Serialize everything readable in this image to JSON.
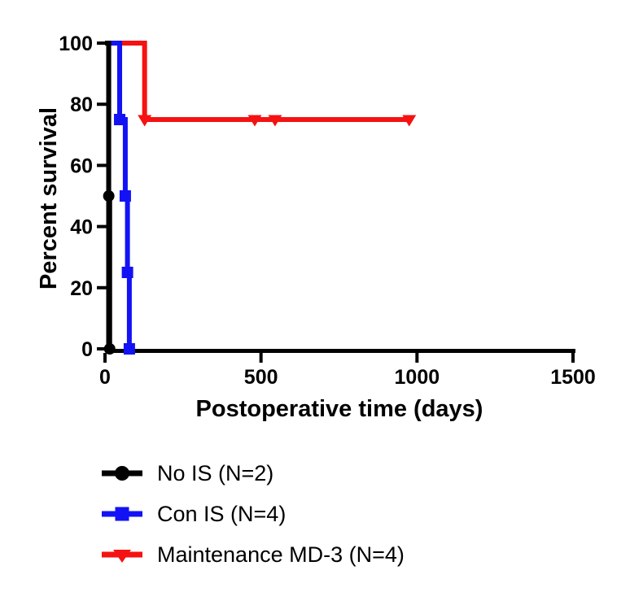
{
  "chart_data": {
    "type": "line",
    "subtype": "kaplan-meier-step-survival",
    "xlabel": "Postoperative time (days)",
    "ylabel": "Percent survival",
    "xlim": [
      0,
      1500
    ],
    "ylim": [
      0,
      100
    ],
    "xticks": [
      0,
      500,
      1000,
      1500
    ],
    "yticks": [
      0,
      20,
      40,
      60,
      80,
      100
    ],
    "grid": false,
    "legend_position": "below-left",
    "axis_color": "#000000",
    "background_color": "#ffffff",
    "series": [
      {
        "name": "No IS (N=2)",
        "color": "#000000",
        "marker": "circle",
        "steps": [
          [
            0,
            100
          ],
          [
            12,
            100
          ],
          [
            12,
            50
          ],
          [
            15,
            50
          ],
          [
            15,
            0
          ]
        ],
        "marker_points": [
          [
            12,
            50
          ],
          [
            15,
            0
          ]
        ]
      },
      {
        "name": "Con IS (N=4)",
        "color": "#1212f5",
        "marker": "square",
        "steps": [
          [
            0,
            100
          ],
          [
            47,
            100
          ],
          [
            47,
            75
          ],
          [
            65,
            75
          ],
          [
            65,
            50
          ],
          [
            72,
            50
          ],
          [
            72,
            25
          ],
          [
            78,
            25
          ],
          [
            78,
            0
          ]
        ],
        "marker_points": [
          [
            47,
            75
          ],
          [
            65,
            50
          ],
          [
            72,
            25
          ],
          [
            78,
            0
          ]
        ]
      },
      {
        "name": "Maintenance MD-3 (N=4)",
        "color": "#f51212",
        "marker": "triangle-down",
        "steps": [
          [
            0,
            100
          ],
          [
            127,
            100
          ],
          [
            127,
            75
          ],
          [
            975,
            75
          ]
        ],
        "marker_points": [
          [
            127,
            75
          ],
          [
            480,
            75
          ],
          [
            545,
            75
          ],
          [
            975,
            75
          ]
        ]
      }
    ]
  }
}
